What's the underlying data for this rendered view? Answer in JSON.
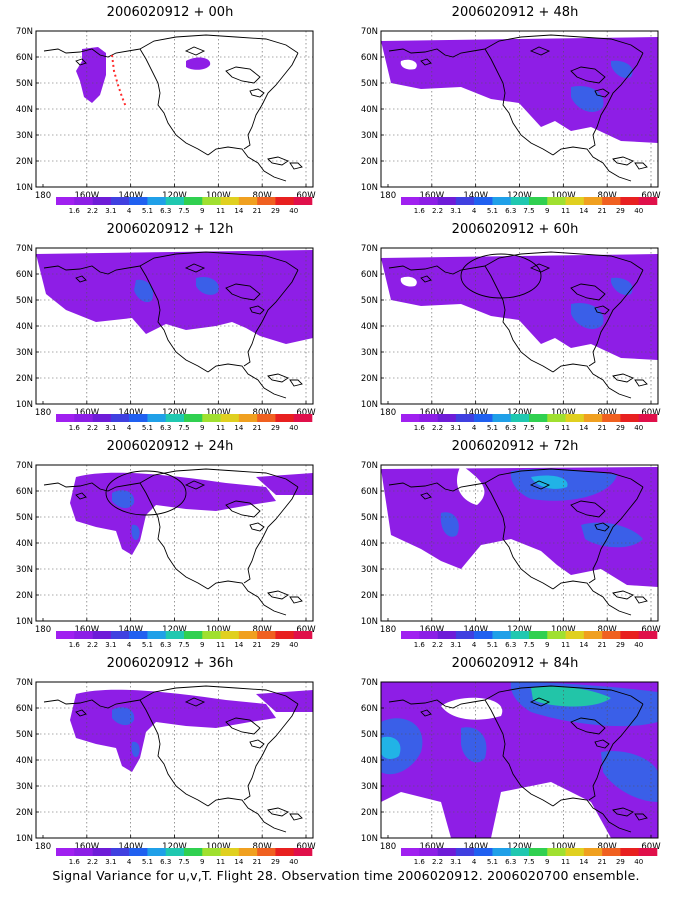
{
  "panels": [
    {
      "title": "2006020912 + 00h",
      "level": 0
    },
    {
      "title": "2006020912 + 48h",
      "level": 3
    },
    {
      "title": "2006020912 + 12h",
      "level": 1
    },
    {
      "title": "2006020912 + 60h",
      "level": 3
    },
    {
      "title": "2006020912 + 24h",
      "level": 2
    },
    {
      "title": "2006020912 + 72h",
      "level": 4
    },
    {
      "title": "2006020912 + 36h",
      "level": 2
    },
    {
      "title": "2006020912 + 84h",
      "level": 5
    }
  ],
  "lat_labels": [
    "10N",
    "20N",
    "30N",
    "40N",
    "50N",
    "60N",
    "70N"
  ],
  "lon_labels": [
    "180",
    "160W",
    "140W",
    "120W",
    "100W",
    "80W",
    "60W"
  ],
  "colorbar": {
    "labels": [
      "1.6",
      "2.2",
      "3.1",
      "4",
      "5.1",
      "6.3",
      "7.5",
      "9",
      "11",
      "14",
      "21",
      "29",
      "40"
    ],
    "colors": [
      "#a020f0",
      "#8c1ee6",
      "#6e1cd8",
      "#4040e0",
      "#2060f0",
      "#20a0e8",
      "#20c8b0",
      "#30d050",
      "#a0e030",
      "#e0d020",
      "#f0a020",
      "#f06020",
      "#e82020",
      "#e0104a"
    ]
  },
  "caption": "Signal Variance for u,v,T. Flight 28. Observation time 2006020912. 2006020700 ensemble.",
  "colors": {
    "fill_purple": "#8e1ee6",
    "fill_blue": "#3a5fe8",
    "fill_cyan": "#21b3e6",
    "fill_teal": "#22c5a8"
  }
}
